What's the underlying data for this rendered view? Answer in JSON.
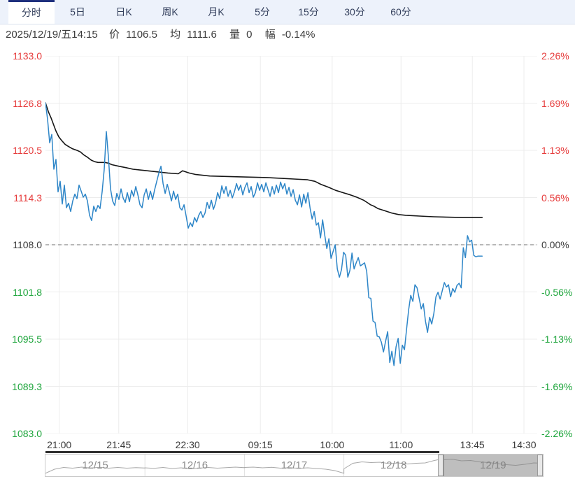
{
  "tabs": [
    {
      "id": "minute",
      "label": "分时",
      "active": true
    },
    {
      "id": "5day",
      "label": "5日",
      "active": false
    },
    {
      "id": "daily-k",
      "label": "日K",
      "active": false
    },
    {
      "id": "weekly-k",
      "label": "周K",
      "active": false
    },
    {
      "id": "monthly-k",
      "label": "月K",
      "active": false
    },
    {
      "id": "5min",
      "label": "5分",
      "active": false
    },
    {
      "id": "15min",
      "label": "15分",
      "active": false
    },
    {
      "id": "30min",
      "label": "30分",
      "active": false
    },
    {
      "id": "60min",
      "label": "60分",
      "active": false
    }
  ],
  "quote": {
    "datetime": "2025/12/19/五14:15",
    "price_label": "价",
    "price": "1106.5",
    "avg_label": "均",
    "avg": "1111.6",
    "vol_label": "量",
    "vol": "0",
    "range_label": "幅",
    "range": "-0.14%"
  },
  "colors": {
    "up": "#e63b3b",
    "down": "#1ea53c",
    "text": "#3b3b3b",
    "price_line": "#2e86c8",
    "avg_line": "#161616",
    "grid": "#ececec",
    "baseline": "#707070",
    "tab_accent": "#1e2f7d",
    "tabbar_bg": "#edf2fb",
    "nav_spark": "#a8a8a8",
    "nav_label": "#8c8c8c",
    "nav_selection": "rgba(125,125,125,0.5)",
    "nav_border": "#c9c9c9"
  },
  "chart_data": {
    "type": "line",
    "title": "",
    "xlabel": "",
    "ylabel": "",
    "grid": true,
    "legend": false,
    "ylim": [
      1083.0,
      1133.0
    ],
    "baseline": 1108.0,
    "left_ticks": [
      "1133.0",
      "1126.8",
      "1120.5",
      "1114.3",
      "1108.0",
      "1101.8",
      "1095.5",
      "1089.3",
      "1083.0"
    ],
    "right_ticks": [
      "2.26%",
      "1.69%",
      "1.13%",
      "0.56%",
      "0.00%",
      "-0.56%",
      "-1.13%",
      "-1.69%",
      "-2.26%"
    ],
    "x_ticks": [
      {
        "label": "21:00",
        "pos": 0.028
      },
      {
        "label": "21:45",
        "pos": 0.149
      },
      {
        "label": "22:30",
        "pos": 0.289
      },
      {
        "label": "09:15",
        "pos": 0.437
      },
      {
        "label": "10:00",
        "pos": 0.583
      },
      {
        "label": "11:00",
        "pos": 0.723
      },
      {
        "label": "13:45",
        "pos": 0.868
      },
      {
        "label": "14:30",
        "pos": 0.973
      }
    ],
    "series": [
      {
        "name": "price",
        "color": "#2e86c8",
        "x_start": 0.0,
        "x_end": 0.888,
        "values": [
          1126.8,
          1124.6,
          1121.5,
          1122.6,
          1118.0,
          1119.3,
          1115.0,
          1116.4,
          1113.4,
          1115.9,
          1112.9,
          1113.5,
          1112.4,
          1113.8,
          1114.7,
          1114.1,
          1115.9,
          1115.1,
          1114.3,
          1114.7,
          1113.8,
          1111.9,
          1111.2,
          1113.1,
          1112.4,
          1113.2,
          1112.8,
          1115.0,
          1118.0,
          1123.0,
          1119.6,
          1115.4,
          1113.8,
          1113.2,
          1114.8,
          1114.0,
          1115.4,
          1114.2,
          1113.6,
          1114.9,
          1113.7,
          1115.2,
          1114.4,
          1115.7,
          1114.6,
          1113.3,
          1112.9,
          1114.6,
          1115.4,
          1114.0,
          1115.1,
          1114.0,
          1115.3,
          1116.4,
          1117.5,
          1118.4,
          1116.1,
          1114.8,
          1116.0,
          1115.0,
          1113.8,
          1115.1,
          1114.0,
          1114.7,
          1112.9,
          1112.6,
          1113.3,
          1111.8,
          1110.2,
          1110.9,
          1110.4,
          1111.6,
          1111.0,
          1111.9,
          1112.4,
          1111.6,
          1112.2,
          1113.6,
          1112.8,
          1113.9,
          1112.7,
          1113.5,
          1114.9,
          1114.1,
          1115.8,
          1114.8,
          1115.7,
          1114.4,
          1115.2,
          1114.2,
          1115.0,
          1116.1,
          1115.2,
          1115.9,
          1114.6,
          1115.6,
          1116.2,
          1114.9,
          1115.7,
          1114.3,
          1114.9,
          1116.2,
          1115.2,
          1116.0,
          1115.0,
          1116.2,
          1115.3,
          1114.4,
          1115.7,
          1114.7,
          1115.9,
          1114.9,
          1116.3,
          1115.4,
          1116.1,
          1114.7,
          1115.6,
          1114.4,
          1115.3,
          1113.9,
          1113.3,
          1114.6,
          1113.0,
          1114.7,
          1113.5,
          1114.9,
          1112.9,
          1111.4,
          1112.4,
          1110.6,
          1110.9,
          1108.9,
          1111.3,
          1109.3,
          1107.5,
          1108.8,
          1106.2,
          1107.1,
          1108.0,
          1104.8,
          1103.7,
          1104.7,
          1107.0,
          1106.6,
          1103.7,
          1104.6,
          1106.9,
          1104.8,
          1105.6,
          1106.3,
          1105.2,
          1105.4,
          1105.6,
          1104.5,
          1101.0,
          1100.9,
          1097.9,
          1097.7,
          1095.9,
          1095.8,
          1095.1,
          1093.8,
          1095.2,
          1096.5,
          1092.4,
          1093.9,
          1092.0,
          1094.5,
          1095.6,
          1092.3,
          1094.7,
          1094.1,
          1096.8,
          1099.4,
          1101.3,
          1100.5,
          1102.7,
          1102.3,
          1100.9,
          1099.5,
          1100.2,
          1097.9,
          1096.4,
          1098.4,
          1097.5,
          1098.9,
          1101.1,
          1101.7,
          1100.8,
          1101.9,
          1103.0,
          1102.4,
          1102.7,
          1101.1,
          1102.2,
          1101.7,
          1102.6,
          1102.9,
          1102.3,
          1107.6,
          1106.3,
          1109.2,
          1108.4,
          1108.6,
          1106.6,
          1106.4,
          1106.5,
          1106.5,
          1106.5
        ]
      },
      {
        "name": "average",
        "color": "#161616",
        "points": [
          [
            0,
            1126.8
          ],
          [
            0.006,
            1125.6
          ],
          [
            0.012,
            1124.7
          ],
          [
            0.017,
            1123.8
          ],
          [
            0.021,
            1123.1
          ],
          [
            0.027,
            1122.3
          ],
          [
            0.033,
            1121.8
          ],
          [
            0.04,
            1121.3
          ],
          [
            0.047,
            1121.0
          ],
          [
            0.055,
            1120.7
          ],
          [
            0.064,
            1120.5
          ],
          [
            0.071,
            1120.3
          ],
          [
            0.078,
            1119.9
          ],
          [
            0.085,
            1119.6
          ],
          [
            0.093,
            1119.2
          ],
          [
            0.1,
            1119.0
          ],
          [
            0.107,
            1118.9
          ],
          [
            0.121,
            1118.9
          ],
          [
            0.128,
            1118.8
          ],
          [
            0.135,
            1118.6
          ],
          [
            0.149,
            1118.4
          ],
          [
            0.164,
            1118.2
          ],
          [
            0.178,
            1118.0
          ],
          [
            0.192,
            1117.9
          ],
          [
            0.22,
            1117.7
          ],
          [
            0.249,
            1117.5
          ],
          [
            0.27,
            1117.4
          ],
          [
            0.279,
            1117.8
          ],
          [
            0.292,
            1117.5
          ],
          [
            0.306,
            1117.3
          ],
          [
            0.334,
            1117.1
          ],
          [
            0.39,
            1117.0
          ],
          [
            0.45,
            1116.9
          ],
          [
            0.505,
            1116.7
          ],
          [
            0.533,
            1116.6
          ],
          [
            0.548,
            1116.4
          ],
          [
            0.56,
            1116.0
          ],
          [
            0.576,
            1115.6
          ],
          [
            0.59,
            1115.2
          ],
          [
            0.605,
            1114.9
          ],
          [
            0.62,
            1114.6
          ],
          [
            0.633,
            1114.3
          ],
          [
            0.64,
            1114.1
          ],
          [
            0.647,
            1113.9
          ],
          [
            0.654,
            1113.6
          ],
          [
            0.661,
            1113.3
          ],
          [
            0.668,
            1113.1
          ],
          [
            0.676,
            1112.8
          ],
          [
            0.69,
            1112.5
          ],
          [
            0.704,
            1112.2
          ],
          [
            0.718,
            1112.0
          ],
          [
            0.733,
            1111.9
          ],
          [
            0.747,
            1111.85
          ],
          [
            0.761,
            1111.8
          ],
          [
            0.775,
            1111.75
          ],
          [
            0.79,
            1111.7
          ],
          [
            0.818,
            1111.65
          ],
          [
            0.847,
            1111.6
          ],
          [
            0.888,
            1111.6
          ]
        ]
      }
    ]
  },
  "navigator": {
    "selected_index": 4,
    "days": [
      {
        "label": "12/15",
        "spark": [
          0.95,
          0.72,
          0.62,
          0.66,
          0.6,
          0.65,
          0.61,
          0.66,
          0.62,
          0.66,
          0.63,
          0.65
        ]
      },
      {
        "label": "12/16",
        "spark": [
          0.64,
          0.67,
          0.62,
          0.68,
          0.64,
          0.7,
          0.66,
          0.62,
          0.66,
          0.63,
          0.6,
          0.63
        ]
      },
      {
        "label": "12/17",
        "spark": [
          0.62,
          0.6,
          0.64,
          0.61,
          0.66,
          0.63,
          0.67,
          0.64,
          0.68,
          0.72,
          0.8,
          0.95
        ]
      },
      {
        "label": "12/18",
        "spark": [
          0.7,
          0.38,
          0.3,
          0.34,
          0.32,
          0.4,
          0.36,
          0.42,
          0.38,
          0.36,
          0.22,
          0.12
        ]
      },
      {
        "label": "12/19",
        "spark": [
          0.18,
          0.15,
          0.24,
          0.22,
          0.3,
          0.34,
          0.4,
          0.46,
          0.5,
          0.44,
          0.36,
          0.38
        ]
      }
    ]
  }
}
